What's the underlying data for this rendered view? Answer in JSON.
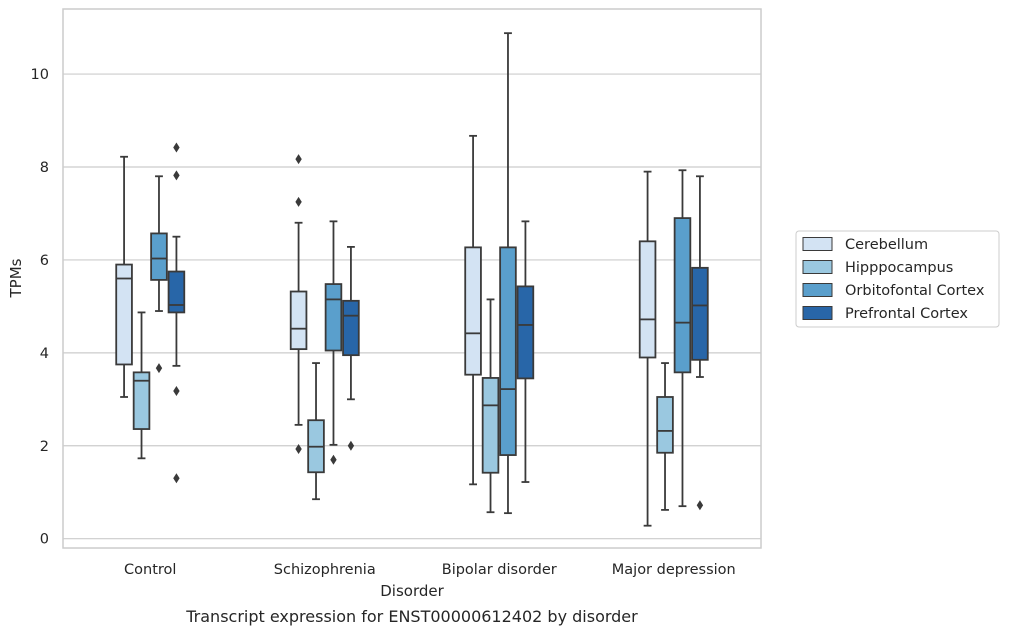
{
  "caption": "Transcript expression for ENST00000612402 by disorder",
  "chart_data": {
    "type": "box",
    "xlabel": "Disorder",
    "ylabel": "TPMs",
    "ylim": [
      -0.2,
      11.4
    ],
    "yticks": [
      0,
      2,
      4,
      6,
      8,
      10
    ],
    "grid": "horizontal",
    "legend_position": "right",
    "categories": [
      "Control",
      "Schizophrenia",
      "Bipolar disorder",
      "Major depression"
    ],
    "series": [
      {
        "name": "Cerebellum",
        "color": "#d3e3f3",
        "boxes": [
          {
            "whisker_low": 3.05,
            "q1": 3.75,
            "median": 5.6,
            "q3": 5.9,
            "whisker_high": 8.22,
            "outliers": []
          },
          {
            "whisker_low": 2.45,
            "q1": 4.08,
            "median": 4.52,
            "q3": 5.32,
            "whisker_high": 6.8,
            "outliers": [
              1.93,
              7.25,
              8.17
            ]
          },
          {
            "whisker_low": 1.17,
            "q1": 3.53,
            "median": 4.42,
            "q3": 6.27,
            "whisker_high": 8.67,
            "outliers": []
          },
          {
            "whisker_low": 0.28,
            "q1": 3.9,
            "median": 4.72,
            "q3": 6.4,
            "whisker_high": 7.9,
            "outliers": []
          }
        ]
      },
      {
        "name": "Hipppocampus",
        "color": "#9ac8e0",
        "boxes": [
          {
            "whisker_low": 1.73,
            "q1": 2.36,
            "median": 3.4,
            "q3": 3.58,
            "whisker_high": 4.87,
            "outliers": []
          },
          {
            "whisker_low": 0.85,
            "q1": 1.43,
            "median": 1.98,
            "q3": 2.55,
            "whisker_high": 3.78,
            "outliers": []
          },
          {
            "whisker_low": 0.57,
            "q1": 1.42,
            "median": 2.87,
            "q3": 3.46,
            "whisker_high": 5.15,
            "outliers": []
          },
          {
            "whisker_low": 0.62,
            "q1": 1.85,
            "median": 2.32,
            "q3": 3.05,
            "whisker_high": 3.78,
            "outliers": []
          }
        ]
      },
      {
        "name": "Orbitofontal Cortex",
        "color": "#5a9fcc",
        "boxes": [
          {
            "whisker_low": 4.9,
            "q1": 5.57,
            "median": 6.03,
            "q3": 6.57,
            "whisker_high": 7.8,
            "outliers": [
              3.67
            ]
          },
          {
            "whisker_low": 2.02,
            "q1": 4.05,
            "median": 5.15,
            "q3": 5.48,
            "whisker_high": 6.83,
            "outliers": [
              1.7
            ]
          },
          {
            "whisker_low": 0.55,
            "q1": 1.8,
            "median": 3.22,
            "q3": 6.27,
            "whisker_high": 10.88,
            "outliers": []
          },
          {
            "whisker_low": 0.7,
            "q1": 3.58,
            "median": 4.65,
            "q3": 6.9,
            "whisker_high": 7.93,
            "outliers": []
          }
        ]
      },
      {
        "name": "Prefrontal Cortex",
        "color": "#2866a8",
        "boxes": [
          {
            "whisker_low": 3.72,
            "q1": 4.87,
            "median": 5.03,
            "q3": 5.75,
            "whisker_high": 6.5,
            "outliers": [
              1.3,
              3.18,
              7.82,
              8.42
            ]
          },
          {
            "whisker_low": 3.0,
            "q1": 3.95,
            "median": 4.8,
            "q3": 5.12,
            "whisker_high": 6.28,
            "outliers": [
              2.0
            ]
          },
          {
            "whisker_low": 1.22,
            "q1": 3.45,
            "median": 4.6,
            "q3": 5.43,
            "whisker_high": 6.83,
            "outliers": []
          },
          {
            "whisker_low": 3.48,
            "q1": 3.85,
            "median": 5.02,
            "q3": 5.83,
            "whisker_high": 7.8,
            "outliers": [
              0.72
            ]
          }
        ]
      }
    ]
  }
}
